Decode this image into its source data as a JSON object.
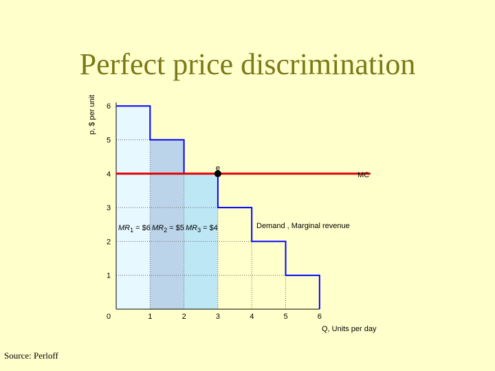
{
  "title": "Perfect price discrimination",
  "source": "Source: Perloff",
  "chart_data": {
    "type": "bar",
    "ylabel": "p, $ per unit",
    "xlabel": "Q, Units per day",
    "x_ticks": [
      "0",
      "1",
      "2",
      "3",
      "4",
      "5",
      "6"
    ],
    "y_ticks": [
      "1",
      "2",
      "3",
      "4",
      "5",
      "6"
    ],
    "xlim": [
      0,
      6
    ],
    "ylim": [
      0,
      6
    ],
    "demand_steps": [
      {
        "from": 0,
        "to": 1,
        "price": 6
      },
      {
        "from": 1,
        "to": 2,
        "price": 5
      },
      {
        "from": 2,
        "to": 3,
        "price": 4
      },
      {
        "from": 3,
        "to": 4,
        "price": 3
      },
      {
        "from": 4,
        "to": 5,
        "price": 2
      },
      {
        "from": 5,
        "to": 6,
        "price": 1
      }
    ],
    "mc": {
      "label": "MC",
      "value": 4
    },
    "demand_label": "Demand , Marginal revenue",
    "point": {
      "label": "e",
      "x": 3,
      "y": 4
    },
    "mr_labels": [
      {
        "name": "MR",
        "sub": "1",
        "eq": " = $6"
      },
      {
        "name": "MR",
        "sub": "2",
        "eq": " = $5"
      },
      {
        "name": "MR",
        "sub": "3",
        "eq": " = $4"
      }
    ],
    "colors": {
      "bar1": "#e8f8ff",
      "bar2": "#bcd4ea",
      "bar3": "#bde7f5",
      "curve": "#0000ff",
      "mc": "#dd0000",
      "background": "#ffffcc"
    }
  }
}
